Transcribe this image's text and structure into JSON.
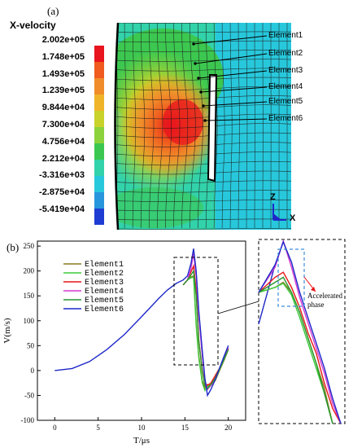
{
  "panel_a_label": "(a)",
  "panel_b_label": "(b)",
  "colorbar": {
    "title": "X-velocity",
    "ticks": [
      "2.002e+05",
      "1.748e+05",
      "1.493e+05",
      "1.239e+05",
      "9.844e+04",
      "7.300e+04",
      "4.756e+04",
      "2.212e+04",
      "-3.316e+03",
      "-2.875e+04",
      "-5.419e+04"
    ],
    "colors": [
      "#e8141e",
      "#f05a1e",
      "#f08c2a",
      "#f0b42a",
      "#c8d22a",
      "#8cd23c",
      "#3cc850",
      "#32d2aa",
      "#28c8dc",
      "#2896dc",
      "#1e3cd2"
    ]
  },
  "mesh_elements": [
    "Element1",
    "Element2",
    "Element3",
    "Element4",
    "Element5",
    "Element6"
  ],
  "axis_triad": {
    "z": "Z",
    "x": "X"
  },
  "annotation": {
    "accelerated_phase": "Accelerated\nphase"
  },
  "chart_data": [
    {
      "type": "line",
      "xlabel": "T/μs",
      "ylabel": "V(m/s)",
      "xlim": [
        -2,
        22
      ],
      "ylim": [
        -100,
        260
      ],
      "xticks": [
        0,
        5,
        10,
        15,
        20
      ],
      "yticks": [
        -100,
        -50,
        0,
        50,
        100,
        150,
        200,
        250
      ],
      "legend": "top-left",
      "series": [
        {
          "name": "Element1",
          "color": "#8c7a1e",
          "x": [
            14.8,
            15.3,
            15.7,
            16.0,
            16.3,
            16.6,
            17.0,
            17.3,
            17.6,
            18.0,
            18.5,
            19.0,
            19.5,
            20.0
          ],
          "y": [
            172,
            182,
            188,
            190,
            95,
            30,
            -20,
            -35,
            -28,
            -30,
            -20,
            0,
            20,
            42
          ]
        },
        {
          "name": "Element2",
          "color": "#3ccc3c",
          "x": [
            14.8,
            15.3,
            15.7,
            16.0,
            16.3,
            16.6,
            17.0,
            17.3,
            17.6,
            18.0,
            18.5,
            19.0,
            19.5,
            20.0
          ],
          "y": [
            172,
            182,
            186,
            188,
            90,
            25,
            -25,
            -40,
            -32,
            -30,
            -18,
            2,
            22,
            44
          ]
        },
        {
          "name": "Element3",
          "color": "#e81414",
          "x": [
            14.8,
            15.3,
            15.7,
            16.0,
            16.3,
            16.6,
            17.0,
            17.3,
            17.6,
            18.0,
            18.5,
            19.0,
            19.5,
            20.0
          ],
          "y": [
            172,
            182,
            198,
            210,
            160,
            60,
            0,
            -25,
            -30,
            -25,
            -10,
            5,
            25,
            45
          ]
        },
        {
          "name": "Element4",
          "color": "#d23cd2",
          "x": [
            14.8,
            15.3,
            15.7,
            16.0,
            16.3,
            16.6,
            17.0,
            17.3,
            17.6,
            18.0,
            18.5,
            19.0,
            19.5,
            20.0
          ],
          "y": [
            172,
            182,
            205,
            235,
            190,
            110,
            30,
            -20,
            -38,
            -30,
            -15,
            5,
            25,
            46
          ]
        },
        {
          "name": "Element5",
          "color": "#2a9630",
          "x": [
            14.8,
            15.3,
            15.7,
            16.0,
            16.3,
            16.6,
            17.0,
            17.3,
            17.6,
            18.0,
            18.5,
            19.0,
            19.5,
            20.0
          ],
          "y": [
            172,
            182,
            192,
            200,
            150,
            60,
            0,
            -30,
            -36,
            -28,
            -15,
            5,
            22,
            42
          ]
        },
        {
          "name": "Element6",
          "color": "#1e28c8",
          "x": [
            0,
            2,
            4,
            6,
            8,
            10,
            12,
            13,
            14,
            14.8,
            15.3,
            15.7,
            16.0,
            16.3,
            16.6,
            17.0,
            17.3,
            17.6,
            18.0,
            18.5,
            19.0,
            19.5,
            20.0
          ],
          "y": [
            0,
            4,
            18,
            42,
            72,
            108,
            145,
            162,
            175,
            182,
            190,
            215,
            245,
            200,
            120,
            40,
            -15,
            -50,
            -38,
            -18,
            5,
            28,
            50
          ]
        }
      ]
    },
    {
      "type": "line",
      "xlim": [
        15.5,
        17.6
      ],
      "ylim": [
        -100,
        265
      ],
      "series": [
        {
          "name": "Element1",
          "color": "#8c7a1e",
          "x": [
            15.5,
            15.9,
            16.1,
            16.3,
            16.5,
            16.7,
            16.9,
            17.1,
            17.3
          ],
          "y": [
            160,
            170,
            180,
            160,
            120,
            70,
            20,
            -30,
            -100
          ]
        },
        {
          "name": "Element2",
          "color": "#3ccc3c",
          "x": [
            15.5,
            15.9,
            16.1,
            16.3,
            16.5,
            16.7,
            16.9,
            17.1,
            17.3
          ],
          "y": [
            160,
            170,
            178,
            155,
            110,
            60,
            10,
            -40,
            -100
          ]
        },
        {
          "name": "Element3",
          "color": "#e81414",
          "x": [
            15.5,
            15.9,
            16.1,
            16.3,
            16.5,
            16.7,
            16.9,
            17.1,
            17.3,
            17.5
          ],
          "y": [
            160,
            190,
            200,
            170,
            130,
            80,
            40,
            -20,
            -70,
            -100
          ]
        },
        {
          "name": "Element4",
          "color": "#d23cd2",
          "x": [
            15.5,
            15.9,
            16.1,
            16.3,
            16.5,
            16.7,
            16.9,
            17.1,
            17.3,
            17.5
          ],
          "y": [
            160,
            210,
            262,
            210,
            150,
            100,
            50,
            0,
            -60,
            -100
          ]
        },
        {
          "name": "Element5",
          "color": "#2a9630",
          "x": [
            15.5,
            15.9,
            16.1,
            16.3,
            16.5,
            16.7,
            16.9,
            17.1,
            17.3
          ],
          "y": [
            160,
            180,
            190,
            160,
            120,
            70,
            20,
            -40,
            -100
          ]
        },
        {
          "name": "Element6",
          "color": "#1e28c8",
          "x": [
            15.5,
            15.9,
            16.1,
            16.3,
            16.5,
            16.7,
            16.9,
            17.1,
            17.3,
            17.5
          ],
          "y": [
            160,
            215,
            260,
            220,
            160,
            110,
            60,
            10,
            -50,
            -100
          ]
        }
      ]
    }
  ]
}
